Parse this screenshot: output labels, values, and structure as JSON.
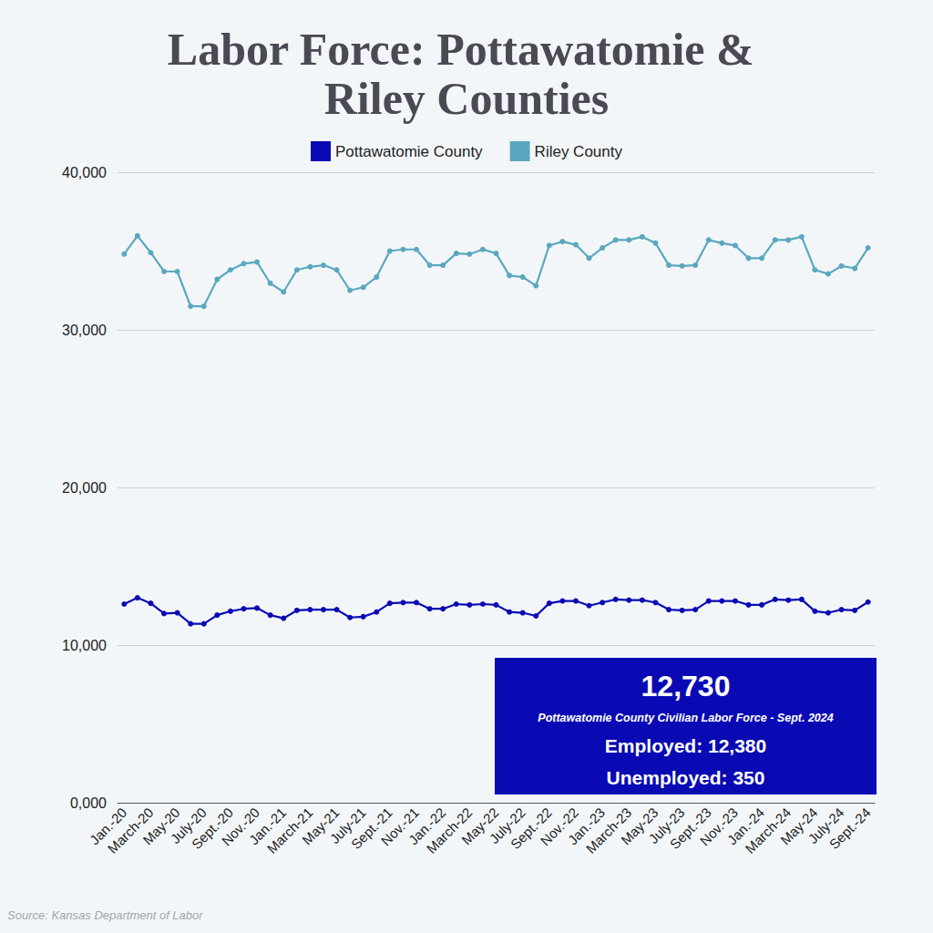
{
  "chart_data": {
    "type": "line",
    "title": "Labor Force: Pottawatomie & Riley Counties",
    "categories": [
      "Jan.-20",
      null,
      "March-20",
      null,
      "May-20",
      null,
      "July-20",
      null,
      "Sept.-20",
      null,
      "Nov.-20",
      null,
      "Jan.-21",
      null,
      "March-21",
      null,
      "May-21",
      null,
      "July-21",
      null,
      "Sept.-21",
      null,
      "Nov.-21",
      null,
      "Jan.-22",
      null,
      "March-22",
      null,
      "May-22",
      null,
      "July-22",
      null,
      "Sept.-22",
      null,
      "Nov.-22",
      null,
      "Jan.-23",
      null,
      "March-23",
      null,
      "May-23",
      null,
      "July-23",
      null,
      "Sept.-23",
      null,
      "Nov.-23",
      null,
      "Jan.-24",
      null,
      "March-24",
      null,
      "May-24",
      null,
      "July-24",
      null,
      "Sept.-24"
    ],
    "series": [
      {
        "name": "Pottawatomie County",
        "color": "#0a0ab4",
        "values": [
          12600,
          13000,
          12650,
          12000,
          12050,
          11350,
          11350,
          11900,
          12150,
          12300,
          12350,
          11900,
          11700,
          12200,
          12250,
          12250,
          12250,
          11750,
          11800,
          12100,
          12650,
          12700,
          12700,
          12300,
          12300,
          12600,
          12550,
          12600,
          12550,
          12100,
          12050,
          11850,
          12650,
          12800,
          12800,
          12500,
          12700,
          12900,
          12850,
          12850,
          12700,
          12250,
          12200,
          12250,
          12800,
          12800,
          12800,
          12550,
          12550,
          12900,
          12850,
          12900,
          12150,
          12050,
          12250,
          12200,
          12730
        ]
      },
      {
        "name": "Riley County",
        "color": "#5aa8bf",
        "values": [
          34800,
          35960,
          34900,
          33700,
          33700,
          31500,
          31500,
          33200,
          33800,
          34200,
          34300,
          32950,
          32400,
          33800,
          34000,
          34100,
          33800,
          32500,
          32700,
          33350,
          35000,
          35100,
          35100,
          34100,
          34100,
          34850,
          34800,
          35100,
          34850,
          33450,
          33350,
          32800,
          35350,
          35600,
          35400,
          34550,
          35200,
          35700,
          35700,
          35900,
          35500,
          34100,
          34050,
          34100,
          35700,
          35500,
          35350,
          34550,
          34550,
          35700,
          35700,
          35900,
          33800,
          33550,
          34050,
          33900,
          35200
        ]
      }
    ],
    "ylim": [
      0,
      40000
    ],
    "yticks": [
      {
        "value": 0,
        "label": "0,000"
      },
      {
        "value": 10000,
        "label": "10,000"
      },
      {
        "value": 20000,
        "label": "20,000"
      },
      {
        "value": 30000,
        "label": "30,000"
      },
      {
        "value": 40000,
        "label": "40,000"
      }
    ],
    "grid": true,
    "legend": "top",
    "marker": "circle",
    "annotation": {
      "headline": "12,730",
      "subtitle": "Pottawatomie County Civilian Labor Force - Sept. 2024",
      "lines": [
        "Employed: 12,380",
        "Unemployed: 350"
      ]
    },
    "source": "Source: Kansas Department of Labor"
  }
}
